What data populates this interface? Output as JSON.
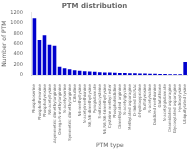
{
  "chart_data": {
    "type": "bar",
    "title": "PTM distribution",
    "xlabel": "PTM type",
    "ylabel": "Number of PTM",
    "categories": [
      "Phosphoserine",
      "Phosphothreonine",
      "Phosphotyrosine",
      "N6-acetyllysine",
      "Asymmetric dimethylarginine",
      "Omega-N-methylarginine",
      "N-acetylserine",
      "Symmetric dimethylarginine",
      "Citrulline",
      "N6-methyllysine",
      "N-acetylmethionine",
      "N6,N6-dimethyllysine",
      "Pyroglutamate",
      "S-nitrosocysteine",
      "N6,N6,N6-trimethyllysine",
      "Cysteine methyl ester",
      "Phosphohistidine",
      "Dimethylated arginine",
      "N-acetylglycine",
      "Methylated asparagine",
      "O-linked GlcNAc",
      "4-hydroxyproline",
      "Sulfotyrosine",
      "N-acetylvaline",
      "Oxidized methionine",
      "Glutathione",
      "N-acetylglutamate",
      "Deamidated asparagine",
      "Glycosylated asparagine",
      "Hydroxylysine",
      "Ubiquitylated lysine"
    ],
    "values": [
      1090,
      670,
      760,
      580,
      560,
      160,
      130,
      110,
      90,
      80,
      70,
      65,
      60,
      55,
      50,
      48,
      42,
      40,
      38,
      35,
      33,
      30,
      28,
      25,
      23,
      20,
      18,
      16,
      14,
      12,
      250
    ],
    "color": "#0000CD",
    "ylim": [
      0,
      1200
    ],
    "yticks": [
      0,
      200,
      400,
      600,
      800,
      1000,
      1200
    ],
    "grid": false
  }
}
